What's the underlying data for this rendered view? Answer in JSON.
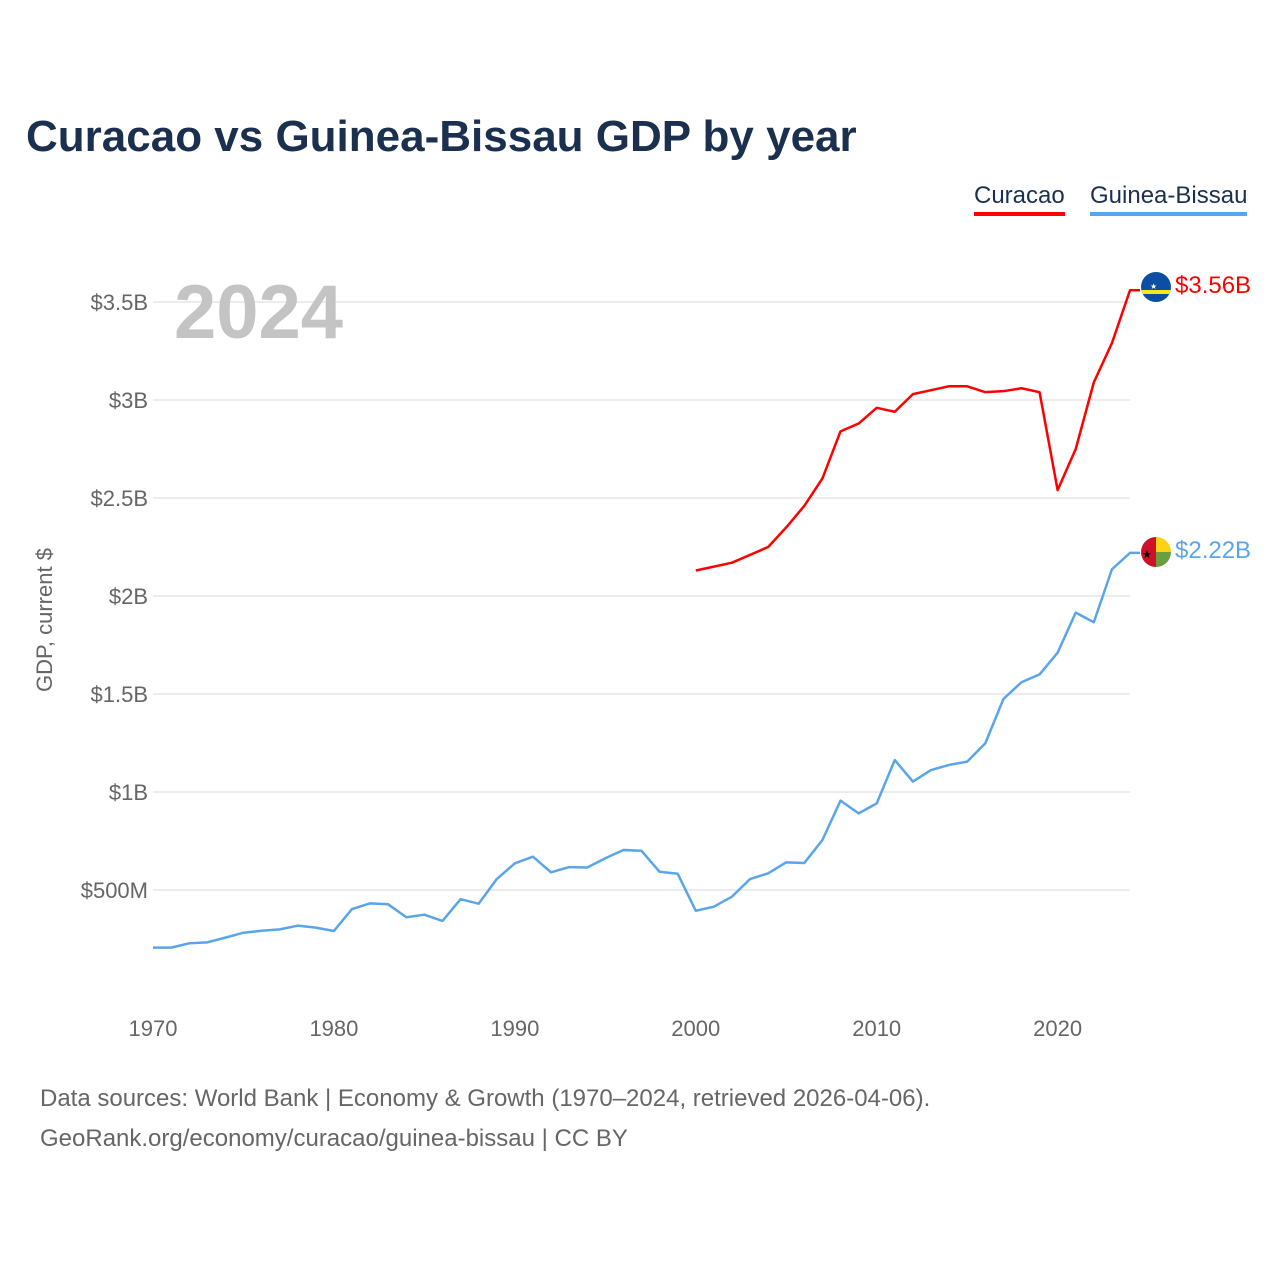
{
  "chart_data": {
    "type": "line",
    "title": "Curacao vs Guinea-Bissau GDP by year",
    "xlabel": "",
    "ylabel": "GDP, current $",
    "year_label": "2024",
    "xlim": [
      1970,
      2024
    ],
    "ylim": [
      0,
      3.75
    ],
    "x_ticks": [
      1970,
      1980,
      1990,
      2000,
      2010,
      2020
    ],
    "y_ticks": [
      {
        "v": 0.5,
        "label": "$500M"
      },
      {
        "v": 1,
        "label": "$1B"
      },
      {
        "v": 1.5,
        "label": "$1.5B"
      },
      {
        "v": 2,
        "label": "$2B"
      },
      {
        "v": 2.5,
        "label": "$2.5B"
      },
      {
        "v": 3,
        "label": "$3B"
      },
      {
        "v": 3.5,
        "label": "$3.5B"
      }
    ],
    "grid": true,
    "legend_placement": "top-right",
    "series": [
      {
        "name": "Curacao",
        "color": "#ff0000",
        "end_label": "$3.56B",
        "flag": "curacao-flag",
        "start_year": 2000,
        "values": [
          2.13,
          2.15,
          2.17,
          2.21,
          2.25,
          2.35,
          2.46,
          2.6,
          2.84,
          2.88,
          2.96,
          2.94,
          3.03,
          3.05,
          3.07,
          3.07,
          3.04,
          3.045,
          3.06,
          3.04,
          2.54,
          2.75,
          3.09,
          3.29,
          3.56
        ]
      },
      {
        "name": "Guinea-Bissau",
        "color": "#5aa5ea",
        "end_label": "$2.22B",
        "flag": "guinea-bissau-flag",
        "start_year": 1970,
        "values": [
          0.206,
          0.206,
          0.228,
          0.233,
          0.257,
          0.282,
          0.292,
          0.299,
          0.318,
          0.308,
          0.291,
          0.403,
          0.432,
          0.427,
          0.361,
          0.374,
          0.342,
          0.453,
          0.43,
          0.556,
          0.636,
          0.67,
          0.59,
          0.617,
          0.615,
          0.662,
          0.704,
          0.7,
          0.593,
          0.583,
          0.394,
          0.415,
          0.466,
          0.556,
          0.585,
          0.641,
          0.638,
          0.755,
          0.956,
          0.891,
          0.942,
          1.163,
          1.053,
          1.112,
          1.138,
          1.155,
          1.248,
          1.474,
          1.56,
          1.6,
          1.711,
          1.915,
          1.866,
          2.136,
          2.22
        ]
      }
    ]
  },
  "footer": {
    "line1": "Data sources: World Bank | Economy & Growth (1970–2024, retrieved 2026-04-06).",
    "line2": "GeoRank.org/economy/curacao/guinea-bissau | CC BY"
  }
}
